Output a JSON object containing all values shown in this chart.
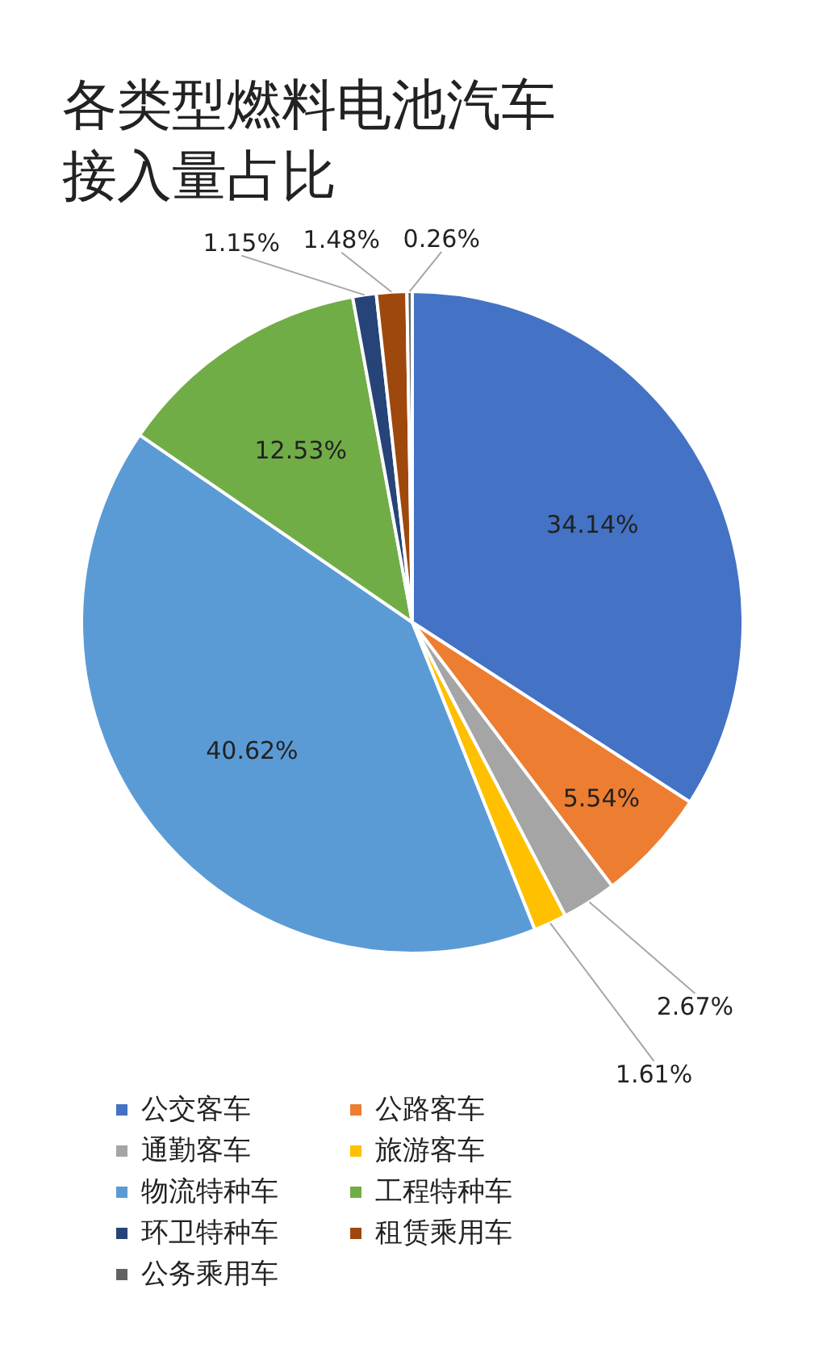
{
  "chart_data": {
    "type": "pie",
    "title": "各类型燃料电池汽车接入量占比",
    "categories": [
      "公交客车",
      "公路客车",
      "通勤客车",
      "旅游客车",
      "物流特种车",
      "工程特种车",
      "环卫特种车",
      "租赁乘用车",
      "公务乘用车"
    ],
    "values": [
      34.14,
      5.54,
      2.67,
      1.61,
      40.62,
      12.53,
      1.15,
      1.48,
      0.26
    ],
    "colors": [
      "#4472c4",
      "#ed7d31",
      "#a5a5a5",
      "#ffc000",
      "#5b9bd5",
      "#70ad47",
      "#264478",
      "#9e480e",
      "#636363"
    ],
    "value_labels": [
      "34.14%",
      "5.54%",
      "2.67%",
      "1.61%",
      "40.62%",
      "12.53%",
      "1.15%",
      "1.48%",
      "0.26%"
    ],
    "legend": "bottom"
  }
}
